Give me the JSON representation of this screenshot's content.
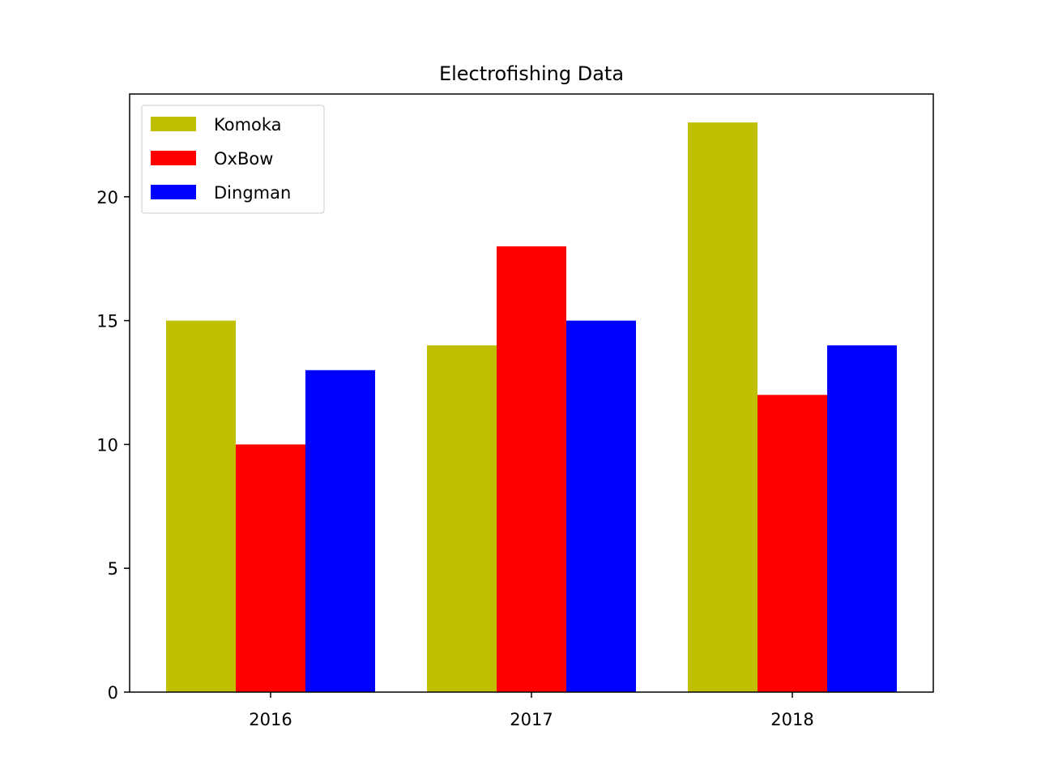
{
  "chart_data": {
    "type": "bar",
    "title": "Electrofishing Data",
    "xlabel": "",
    "ylabel": "",
    "categories": [
      "2016",
      "2017",
      "2018"
    ],
    "ylim": [
      0,
      24.15
    ],
    "yticks": [
      0,
      5,
      10,
      15,
      20
    ],
    "grid": false,
    "legend_position": "top-left",
    "series": [
      {
        "name": "Komoka",
        "color": "#bfbf00",
        "values": [
          15,
          14,
          23
        ]
      },
      {
        "name": "OxBow",
        "color": "#ff0000",
        "values": [
          10,
          18,
          12
        ]
      },
      {
        "name": "Dingman",
        "color": "#0000ff",
        "values": [
          13,
          15,
          14
        ]
      }
    ]
  }
}
